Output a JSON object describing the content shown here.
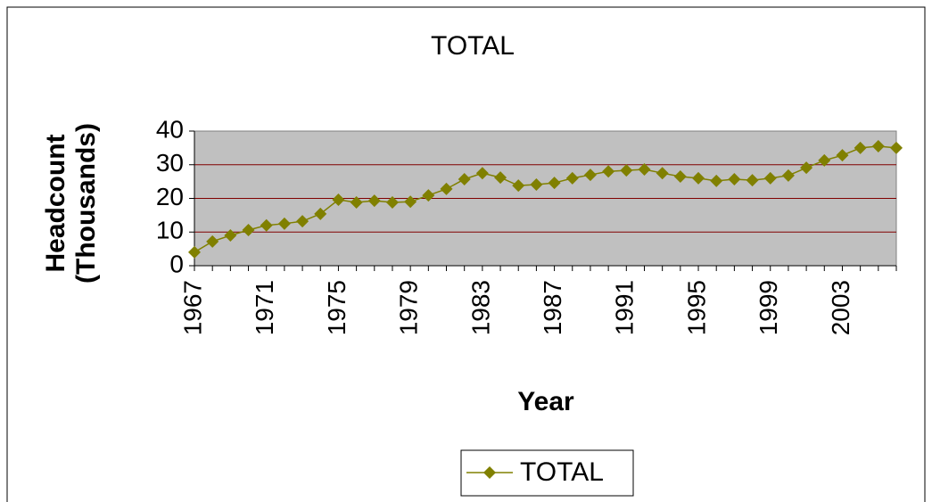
{
  "chart_data": {
    "type": "line",
    "title": "TOTAL",
    "x_label": "Year",
    "y_label": [
      "Headcount",
      "(Thousands)"
    ],
    "categories": [
      "1967",
      null,
      null,
      null,
      "1971",
      null,
      null,
      null,
      "1975",
      null,
      null,
      null,
      "1979",
      null,
      null,
      null,
      "1983",
      null,
      null,
      null,
      "1987",
      null,
      null,
      null,
      "1991",
      null,
      null,
      null,
      "1995",
      null,
      null,
      null,
      "1999",
      null,
      null,
      null,
      "2003",
      null,
      null,
      null
    ],
    "series": [
      {
        "name": "TOTAL",
        "color": "#808000",
        "values": [
          4,
          7.2,
          9,
          10.6,
          12,
          12.5,
          13.2,
          15.4,
          19.6,
          18.8,
          19.3,
          18.8,
          19,
          20.9,
          22.8,
          25.7,
          27.5,
          26.2,
          23.8,
          24.1,
          24.6,
          26,
          27,
          28,
          28.3,
          28.6,
          27.5,
          26.5,
          26,
          25.2,
          25.7,
          25.4,
          26,
          26.8,
          29.1,
          31.3,
          32.8,
          35,
          35.5,
          35
        ]
      }
    ],
    "ylim": [
      0,
      40
    ],
    "yticks": [
      0,
      10,
      20,
      30,
      40
    ],
    "grid": true,
    "grid_color": "#800000",
    "plot_background": "#c0c0c0",
    "legend": "bottom"
  }
}
